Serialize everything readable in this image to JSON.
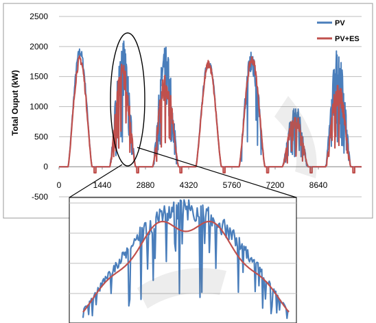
{
  "chart_data": [
    {
      "type": "line",
      "title": "",
      "xlabel": "",
      "ylabel": "Total Ouput (kW)",
      "xlim": [
        0,
        10080
      ],
      "ylim": [
        -500,
        2500
      ],
      "xticks": [
        "0",
        "1440",
        "2880",
        "4320",
        "5760",
        "7200",
        "8640"
      ],
      "yticks": [
        "-500",
        "0",
        "500",
        "1000",
        "1500",
        "2000",
        "2500"
      ],
      "grid": "horizontal",
      "legend_position": "top-right",
      "colors": {
        "PV": "#4a7ebb",
        "PV+ES": "#c0504d"
      },
      "series": [
        {
          "name": "PV",
          "days": [
            {
              "start": 300,
              "end": 1100,
              "peak": 1950,
              "clouds": 0.1
            },
            {
              "start": 1690,
              "end": 2550,
              "peak": 2020,
              "clouds": 0.9
            },
            {
              "start": 3120,
              "end": 3980,
              "peak": 1920,
              "clouds": 0.85
            },
            {
              "start": 4560,
              "end": 5410,
              "peak": 1780,
              "clouds": 0.15
            },
            {
              "start": 6000,
              "end": 6860,
              "peak": 1960,
              "clouds": 0.35
            },
            {
              "start": 7440,
              "end": 8300,
              "peak": 1000,
              "clouds": 0.8
            },
            {
              "start": 8880,
              "end": 9720,
              "peak": 2000,
              "clouds": 0.85
            }
          ]
        },
        {
          "name": "PV+ES",
          "days": [
            {
              "start": 300,
              "end": 1100,
              "peak": 1820,
              "clouds": 0.05
            },
            {
              "start": 1690,
              "end": 2550,
              "peak": 1680,
              "clouds": 0.5
            },
            {
              "start": 3120,
              "end": 3980,
              "peak": 1500,
              "clouds": 0.45
            },
            {
              "start": 4560,
              "end": 5410,
              "peak": 1740,
              "clouds": 0.05
            },
            {
              "start": 6000,
              "end": 6860,
              "peak": 1820,
              "clouds": 0.2
            },
            {
              "start": 7440,
              "end": 8300,
              "peak": 860,
              "clouds": 0.45
            },
            {
              "start": 8880,
              "end": 9720,
              "peak": 1360,
              "clouds": 0.5
            }
          ],
          "night_charging_dips": [
            {
              "x": 1200,
              "y": -100
            },
            {
              "x": 2620,
              "y": -100
            },
            {
              "x": 4060,
              "y": -100
            },
            {
              "x": 5500,
              "y": -100
            },
            {
              "x": 6950,
              "y": -100
            },
            {
              "x": 8400,
              "y": -100
            },
            {
              "x": 9820,
              "y": -100
            }
          ]
        }
      ],
      "annotation": "ellipse highlighting the day starting at 1440"
    },
    {
      "type": "line",
      "title": "",
      "xlabel": "",
      "ylabel": "",
      "description": "zoomed inset of the highlighted day",
      "series": [
        {
          "name": "PV"
        },
        {
          "name": "PV+ES"
        }
      ]
    }
  ]
}
